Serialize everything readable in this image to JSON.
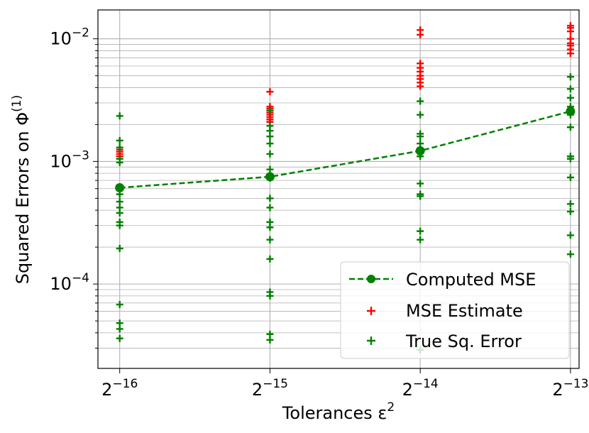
{
  "chart_data": {
    "type": "scatter",
    "title": "",
    "xlabel": "Tolerances ε",
    "xlabel_sup": "2",
    "ylabel": "Squared Errors on Φ",
    "ylabel_sup": "(1)",
    "x_scale": "log2",
    "y_scale": "log10",
    "xlim": [
      1.38e-05,
      0.000127
    ],
    "ylim": [
      2.05e-05,
      0.0172
    ],
    "grid": true,
    "legend_position": "bottom-right",
    "x_ticks": [
      {
        "value": 1.52587890625e-05,
        "base": "2",
        "exp": "−16"
      },
      {
        "value": 3.0517578125e-05,
        "base": "2",
        "exp": "−15"
      },
      {
        "value": 6.103515625e-05,
        "base": "2",
        "exp": "−14"
      },
      {
        "value": 0.0001220703125,
        "base": "2",
        "exp": "−13"
      }
    ],
    "y_ticks": [
      {
        "value": 0.0001,
        "base": "10",
        "exp": "−4"
      },
      {
        "value": 0.001,
        "base": "10",
        "exp": "−3"
      },
      {
        "value": 0.01,
        "base": "10",
        "exp": "−2"
      }
    ],
    "series": [
      {
        "name": "Computed MSE",
        "kind": "line",
        "color": "#008000",
        "x": [
          1.52587890625e-05,
          3.0517578125e-05,
          6.103515625e-05,
          0.0001220703125
        ],
        "y": [
          0.00061,
          0.00075,
          0.00122,
          0.00256
        ]
      },
      {
        "name": "MSE Estimate",
        "kind": "scatter",
        "color": "#ff0000",
        "points": [
          {
            "x": 1.52587890625e-05,
            "y": [
              0.00125,
              0.0012,
              0.00115,
              0.0011
            ]
          },
          {
            "x": 3.0517578125e-05,
            "y": [
              0.0037,
              0.0028,
              0.0027,
              0.0026,
              0.0025,
              0.0024,
              0.0023,
              0.0022,
              0.0021
            ]
          },
          {
            "x": 6.103515625e-05,
            "y": [
              0.0118,
              0.0108,
              0.0063,
              0.0058,
              0.0054,
              0.005,
              0.0047,
              0.0044,
              0.0041
            ]
          },
          {
            "x": 0.0001220703125,
            "y": [
              0.0128,
              0.0123,
              0.0115,
              0.01,
              0.0092,
              0.0088,
              0.0082,
              0.0076
            ]
          }
        ]
      },
      {
        "name": "True Sq. Error",
        "kind": "scatter",
        "color": "#008000",
        "points": [
          {
            "x": 1.52587890625e-05,
            "y": [
              0.00235,
              0.00148,
              0.0013,
              0.00105,
              0.00098,
              0.00054,
              0.00047,
              0.00042,
              0.00038,
              0.00032,
              0.0003,
              0.000195,
              6.8e-05,
              4.8e-05,
              4.3e-05,
              3.6e-05
            ]
          },
          {
            "x": 3.0517578125e-05,
            "y": [
              0.0026,
              0.00195,
              0.00178,
              0.0016,
              0.0014,
              0.00115,
              0.00086,
              0.00073,
              0.0005,
              0.00042,
              0.00032,
              0.00029,
              0.00023,
              0.00016,
              8.6e-05,
              8e-05,
              3.9e-05,
              3.5e-05
            ]
          },
          {
            "x": 6.103515625e-05,
            "y": [
              0.0031,
              0.0024,
              0.00168,
              0.0016,
              0.0014,
              0.00125,
              0.0011,
              0.00066,
              0.00054,
              0.00052,
              0.00027,
              0.00023,
              2.9e-05
            ]
          },
          {
            "x": 0.0001220703125,
            "y": [
              0.0049,
              0.0039,
              0.0033,
              0.0028,
              0.0024,
              0.0019,
              0.0011,
              0.00105,
              0.00074,
              0.00045,
              0.00039,
              0.00025,
              0.000175
            ]
          }
        ]
      }
    ],
    "legend": [
      {
        "label": "Computed MSE",
        "marker": "line-circle",
        "color": "#008000"
      },
      {
        "label": "MSE Estimate",
        "marker": "plus",
        "color": "#ff0000"
      },
      {
        "label": "True Sq. Error",
        "marker": "plus",
        "color": "#008000"
      }
    ]
  }
}
